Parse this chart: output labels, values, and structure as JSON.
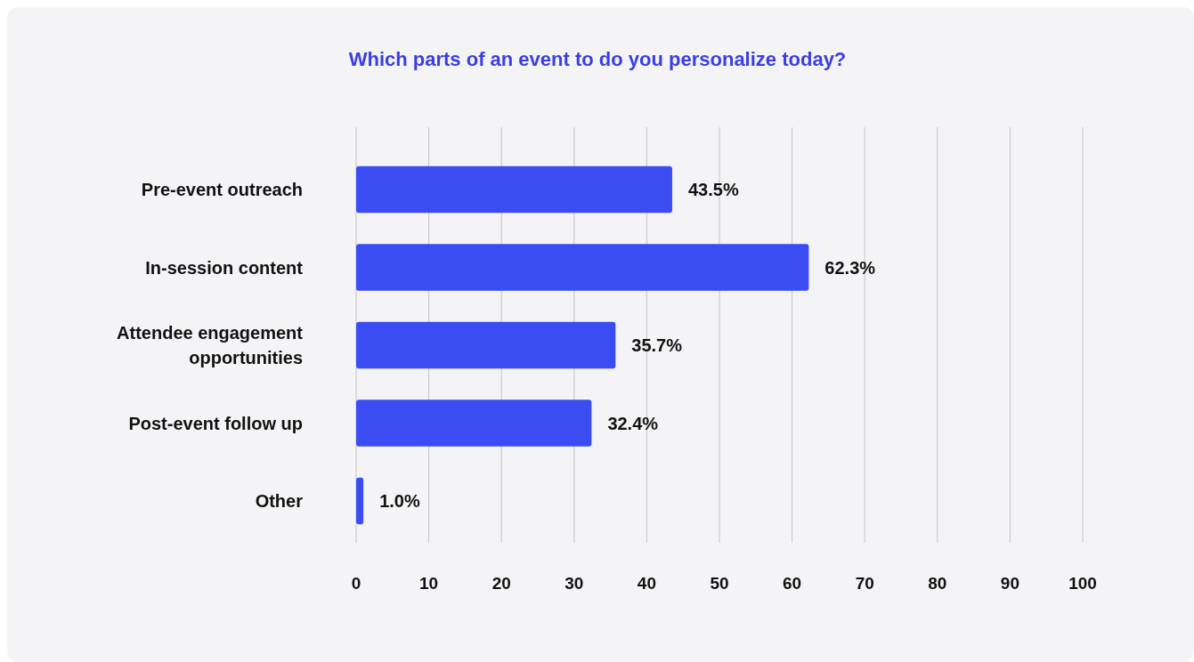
{
  "chart_data": {
    "type": "bar",
    "orientation": "horizontal",
    "title": "Which parts of an event to do you personalize today?",
    "categories": [
      "Pre-event outreach",
      "In-session content",
      "Attendee engagement opportunities",
      "Post-event follow up",
      "Other"
    ],
    "values": [
      43.5,
      62.3,
      35.7,
      32.4,
      1.0
    ],
    "value_labels": [
      "43.5%",
      "62.3%",
      "35.7%",
      "32.4%",
      "1.0%"
    ],
    "color": "#3a4cf2",
    "xlim": [
      0,
      100
    ],
    "xticks": [
      0,
      10,
      20,
      30,
      40,
      50,
      60,
      70,
      80,
      90,
      100
    ],
    "grid": "x"
  }
}
